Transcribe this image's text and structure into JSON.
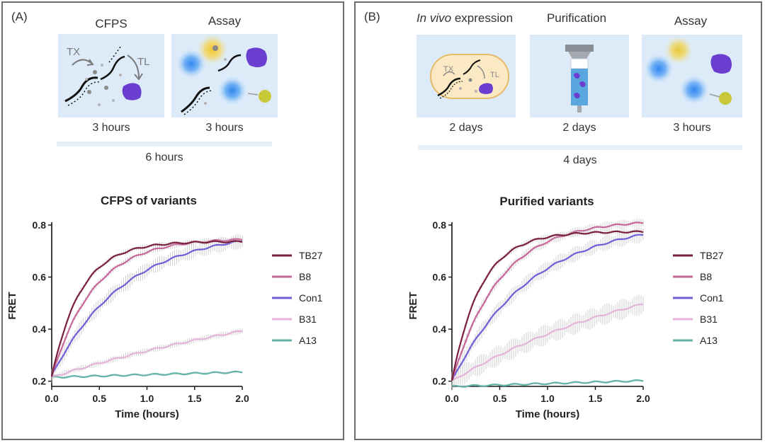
{
  "panels": [
    {
      "label": "(A)",
      "steps": [
        {
          "title": "CFPS",
          "duration": "3 hours",
          "labels": [
            "TX",
            "TL"
          ]
        },
        {
          "title": "Assay",
          "duration": "3 hours"
        }
      ],
      "total": "6 hours"
    },
    {
      "label": "(B)",
      "steps": [
        {
          "title_italic": "In vivo",
          "title_rest": " expression",
          "duration": "2 days",
          "labels": [
            "TX",
            "TL"
          ]
        },
        {
          "title": "Purification",
          "duration": "2 days"
        },
        {
          "title": "Assay",
          "duration": "3 hours"
        }
      ],
      "total": "4 days"
    }
  ],
  "colors": {
    "TB27": "#7a1f3d",
    "B8": "#c8669a",
    "Con1": "#6d5fd8",
    "B31": "#e5b3dc",
    "A13": "#5fb3a6",
    "error": "#b9b9b9",
    "box": "#ddebf8",
    "protein": "#6a3fd0",
    "fluor_blue": "#3b8ff0",
    "fluor_yellow": "#f2c62a",
    "ligand": "#c9c83a"
  },
  "chart_data": [
    {
      "type": "line",
      "title": "CFPS of variants",
      "xlabel": "Time (hours)",
      "ylabel": "FRET",
      "xlim": [
        0,
        2.0
      ],
      "ylim": [
        0.2,
        0.8
      ],
      "xticks": [
        "0.0",
        "0.5",
        "1.0",
        "1.5",
        "2.0"
      ],
      "yticks": [
        "0.2",
        "0.4",
        "0.6",
        "0.8"
      ],
      "legend": [
        "TB27",
        "B8",
        "Con1",
        "B31",
        "A13"
      ],
      "series": [
        {
          "name": "TB27",
          "params": [
            0.215,
            0.522,
            3.3
          ],
          "err": 0.01
        },
        {
          "name": "B8",
          "params": [
            0.215,
            0.535,
            2.3
          ],
          "err": 0.012
        },
        {
          "name": "Con1",
          "params": [
            0.22,
            0.56,
            1.3
          ],
          "err": 0.03
        },
        {
          "name": "B31",
          "params": [
            0.215,
            0.415,
            0.28,
            2.2
          ],
          "err": 0.012
        },
        {
          "name": "A13",
          "params": [
            0.215,
            0.02
          ],
          "err": 0.004
        }
      ]
    },
    {
      "type": "line",
      "title": "Purified variants",
      "xlabel": "Time (hours)",
      "ylabel": "FRET",
      "xlim": [
        0,
        2.0
      ],
      "ylim": [
        0.2,
        0.8
      ],
      "xticks": [
        "0.0",
        "0.5",
        "1.0",
        "1.5",
        "2.0"
      ],
      "yticks": [
        "0.2",
        "0.4",
        "0.6",
        "0.8"
      ],
      "legend": [
        "TB27",
        "B8",
        "Con1",
        "B31",
        "A13"
      ],
      "series": [
        {
          "name": "TB27",
          "params": [
            0.2,
            0.575,
            3.3
          ],
          "err": 0.012
        },
        {
          "name": "B8",
          "params": [
            0.2,
            0.62,
            2.0
          ],
          "err": 0.018
        },
        {
          "name": "Con1",
          "params": [
            0.2,
            0.62,
            1.2
          ],
          "err": 0.03
        },
        {
          "name": "B31",
          "params": [
            0.2,
            0.5,
            0.45
          ],
          "err": 0.04
        },
        {
          "name": "A13",
          "params": [
            0.18,
            0.022
          ],
          "err": 0.004
        }
      ]
    }
  ]
}
